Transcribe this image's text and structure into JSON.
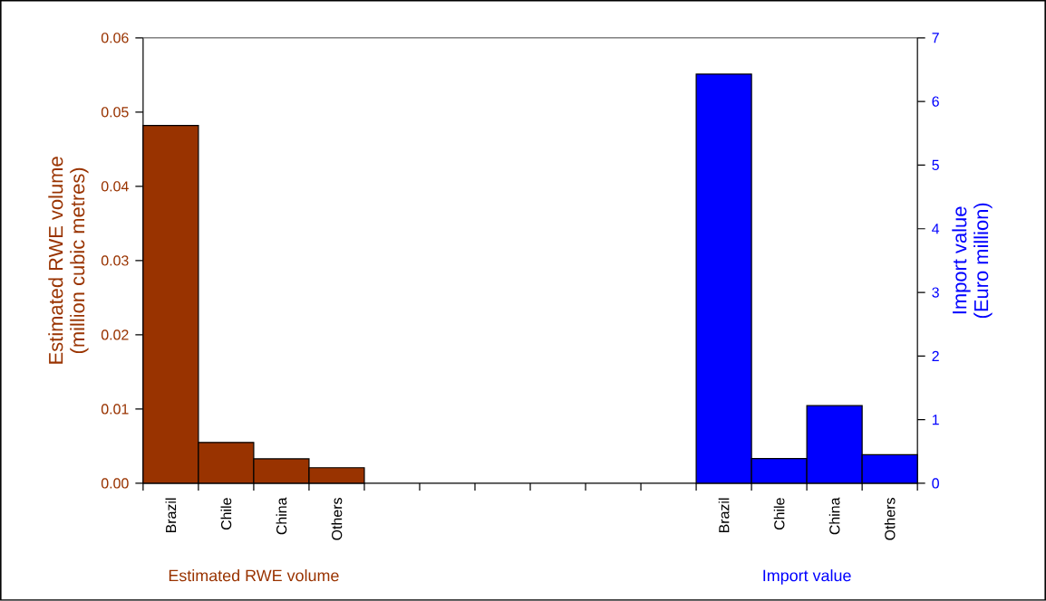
{
  "chart_data": {
    "type": "bar",
    "categories": [
      "Brazil",
      "Chile",
      "China",
      "Others",
      null,
      null,
      null,
      null,
      null,
      null,
      "Brazil",
      "Chile",
      "China",
      "Others"
    ],
    "series": [
      {
        "color": "#993300",
        "values": [
          0.0482,
          0.0055,
          0.0033,
          0.0021,
          null,
          null,
          null,
          null,
          null,
          null,
          null,
          null,
          null,
          null
        ]
      },
      {
        "color": "#0000ff",
        "axis": "y2",
        "values": [
          null,
          null,
          null,
          null,
          null,
          null,
          null,
          null,
          null,
          null,
          6.43,
          0.39,
          1.22,
          0.45
        ]
      }
    ],
    "ylabel": "Estimated RWE volume (million cubic metres)",
    "y2label": "Import value (Euro million)",
    "ylim": [
      0,
      0.06
    ],
    "yticks": [
      {
        "value": 0,
        "label": "0.00"
      },
      {
        "value": 0.01,
        "label": "0.01"
      },
      {
        "value": 0.02,
        "label": "0.02"
      },
      {
        "value": 0.03,
        "label": "0.03"
      },
      {
        "value": 0.04,
        "label": "0.04"
      },
      {
        "value": 0.05,
        "label": "0.05"
      },
      {
        "value": 0.06,
        "label": "0.06"
      }
    ],
    "y2lim": [
      0,
      7
    ],
    "y2ticks": [
      0,
      1,
      2,
      3,
      4,
      5,
      6,
      7
    ],
    "annotations": [
      "Estimated RWE volume",
      "Import value"
    ],
    "grid": false
  }
}
